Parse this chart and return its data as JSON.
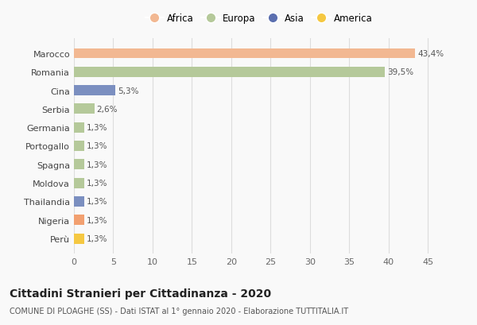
{
  "categories": [
    "Marocco",
    "Romania",
    "Cina",
    "Serbia",
    "Germania",
    "Portogallo",
    "Spagna",
    "Moldova",
    "Thailandia",
    "Nigeria",
    "Perù"
  ],
  "values": [
    43.4,
    39.5,
    5.3,
    2.6,
    1.3,
    1.3,
    1.3,
    1.3,
    1.3,
    1.3,
    1.3
  ],
  "labels": [
    "43,4%",
    "39,5%",
    "5,3%",
    "2,6%",
    "1,3%",
    "1,3%",
    "1,3%",
    "1,3%",
    "1,3%",
    "1,3%",
    "1,3%"
  ],
  "colors": [
    "#F2B892",
    "#B5C99A",
    "#7B8FC0",
    "#B5C99A",
    "#B5C99A",
    "#B5C99A",
    "#B5C99A",
    "#B5C99A",
    "#7B8FC0",
    "#F2A070",
    "#F5C842"
  ],
  "legend_labels": [
    "Africa",
    "Europa",
    "Asia",
    "America"
  ],
  "legend_colors": [
    "#F2B892",
    "#B5C99A",
    "#5B6FAF",
    "#F5C842"
  ],
  "xlim": [
    0,
    47
  ],
  "xticks": [
    0,
    5,
    10,
    15,
    20,
    25,
    30,
    35,
    40,
    45
  ],
  "title": "Cittadini Stranieri per Cittadinanza - 2020",
  "subtitle": "COMUNE DI PLOAGHE (SS) - Dati ISTAT al 1° gennaio 2020 - Elaborazione TUTTITALIA.IT",
  "bg_color": "#f9f9f9",
  "grid_color": "#dddddd"
}
